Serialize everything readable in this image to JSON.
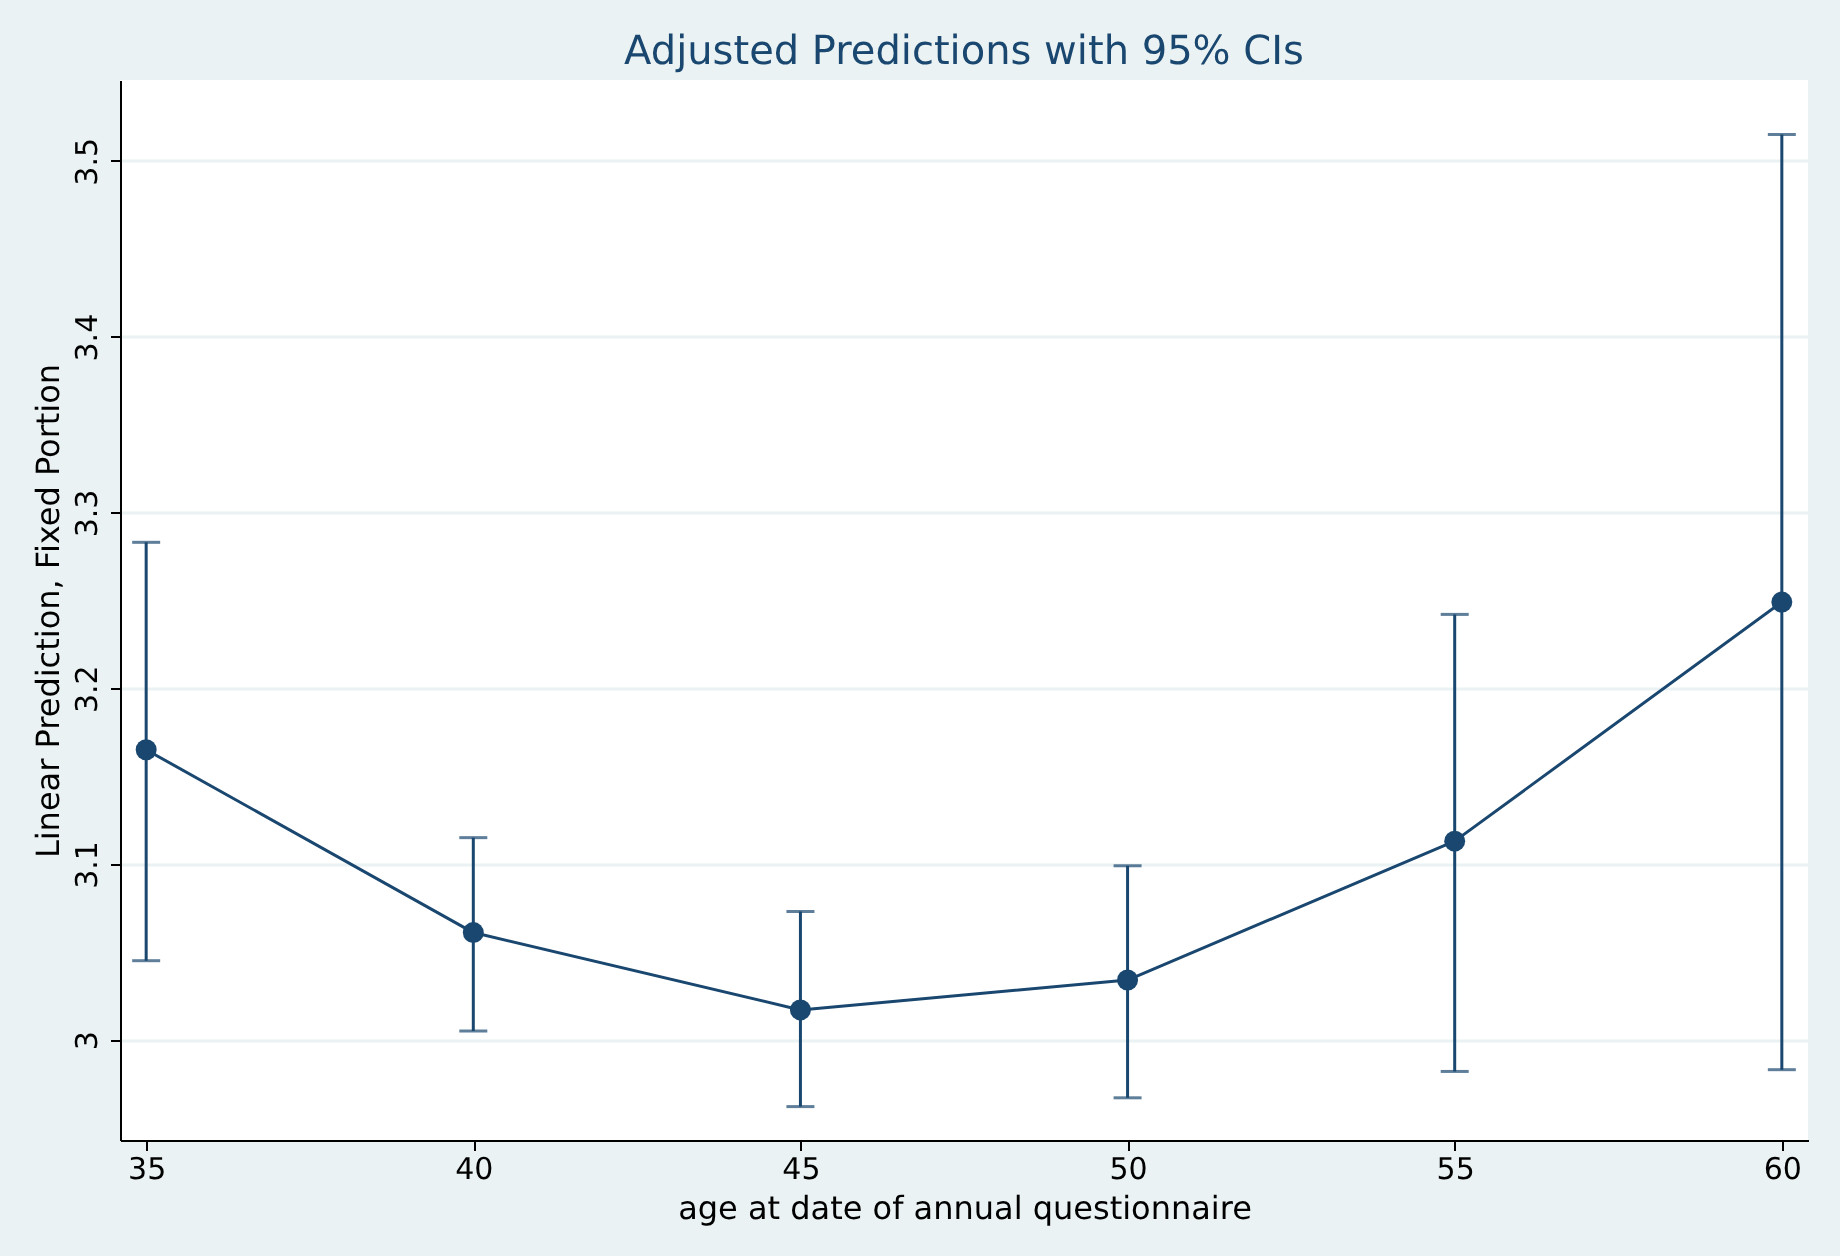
{
  "chart_data": {
    "type": "line",
    "title": "Adjusted Predictions with 95% CIs",
    "xlabel": "age at date of annual questionnaire",
    "ylabel": "Linear Prediction, Fixed Portion",
    "x": [
      35,
      40,
      45,
      50,
      55,
      60
    ],
    "series": [
      {
        "color": "#1a476f",
        "values": [
          3.165,
          3.061,
          3.017,
          3.034,
          3.113,
          3.249
        ],
        "errors": [
          [
            3.045,
            3.283
          ],
          [
            3.005,
            3.115
          ],
          [
            2.962,
            3.073
          ],
          [
            2.967,
            3.099
          ],
          [
            2.982,
            3.242
          ],
          [
            2.983,
            3.515
          ]
        ]
      }
    ],
    "xlim": [
      34.6,
      60.4
    ],
    "xticks": [
      35,
      40,
      45,
      50,
      55,
      60
    ],
    "ylim": [
      2.943,
      3.546
    ],
    "yticks": [
      3,
      3.1,
      3.2,
      3.3,
      3.4,
      3.5
    ],
    "grid": "y",
    "marker": "circle",
    "line_style": "solid"
  }
}
